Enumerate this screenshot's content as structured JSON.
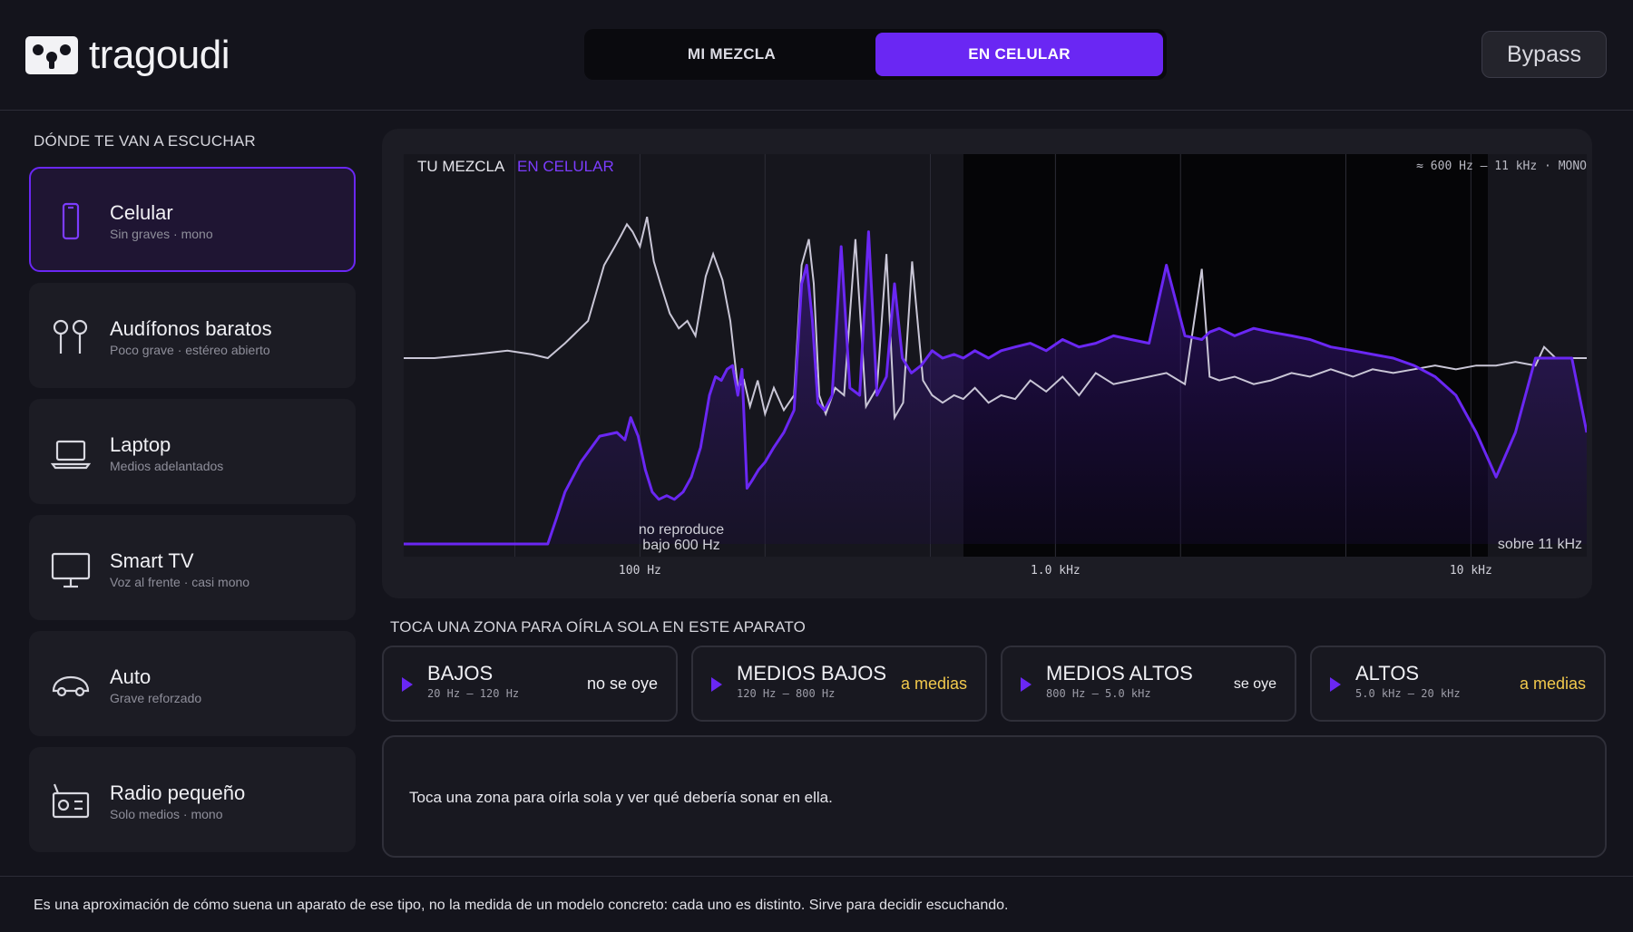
{
  "header": {
    "logo_text": "tragoudi",
    "tabs": [
      {
        "label": "MI MEZCLA",
        "active": false
      },
      {
        "label": "EN CELULAR",
        "active": true
      }
    ],
    "bypass_label": "Bypass"
  },
  "sidebar": {
    "title": "DÓNDE TE VAN A ESCUCHAR",
    "devices": [
      {
        "name": "Celular",
        "subtitle": "Sin graves · mono",
        "icon": "phone-icon",
        "active": true
      },
      {
        "name": "Audífonos baratos",
        "subtitle": "Poco grave · estéreo abierto",
        "icon": "earbuds-icon",
        "active": false
      },
      {
        "name": "Laptop",
        "subtitle": "Medios adelantados",
        "icon": "laptop-icon",
        "active": false
      },
      {
        "name": "Smart TV",
        "subtitle": "Voz al frente · casi mono",
        "icon": "tv-icon",
        "active": false
      },
      {
        "name": "Auto",
        "subtitle": "Grave reforzado",
        "icon": "car-icon",
        "active": false
      },
      {
        "name": "Radio pequeño",
        "subtitle": "Solo medios · mono",
        "icon": "radio-icon",
        "active": false
      }
    ]
  },
  "spectrum": {
    "legend_mix": "TU MEZCLA",
    "legend_device": "EN CELULAR",
    "range_info": "≈ 600 Hz – 11 kHz  ·  MONO",
    "note_low_1": "no reproduce",
    "note_low_2": "bajo 600 Hz",
    "note_high": "sobre 11 kHz",
    "ticks": [
      "100 Hz",
      "1.0 kHz",
      "10 kHz"
    ]
  },
  "chart_data": {
    "type": "line",
    "xscale": "log",
    "xlim": [
      27,
      19000
    ],
    "ylim": [
      0,
      1
    ],
    "series": [
      {
        "name": "TU MEZCLA",
        "color": "#c9c6d6",
        "x": [
          27,
          32,
          40,
          48,
          55,
          60,
          66,
          75,
          82,
          87,
          90,
          93,
          96,
          100,
          104,
          108,
          112,
          118,
          124,
          130,
          136,
          144,
          150,
          158,
          165,
          172,
          178,
          184,
          192,
          200,
          210,
          222,
          235,
          245,
          255,
          262,
          270,
          280,
          295,
          310,
          330,
          350,
          372,
          392,
          410,
          430,
          452,
          480,
          505,
          535,
          570,
          600,
          640,
          690,
          740,
          800,
          870,
          950,
          1040,
          1140,
          1250,
          1380,
          1520,
          1680,
          1850,
          2050,
          2250,
          2350,
          2480,
          2700,
          3000,
          3300,
          3700,
          4100,
          4600,
          5200,
          5800,
          6500,
          7300,
          8200,
          9200,
          10300,
          11500,
          12800,
          14300,
          15000,
          16000,
          17500,
          19000
        ],
        "y": [
          0.5,
          0.5,
          0.51,
          0.52,
          0.51,
          0.5,
          0.54,
          0.6,
          0.75,
          0.8,
          0.83,
          0.86,
          0.84,
          0.8,
          0.88,
          0.76,
          0.7,
          0.62,
          0.58,
          0.6,
          0.56,
          0.72,
          0.78,
          0.71,
          0.6,
          0.42,
          0.44,
          0.37,
          0.44,
          0.35,
          0.42,
          0.36,
          0.4,
          0.75,
          0.82,
          0.7,
          0.4,
          0.35,
          0.42,
          0.4,
          0.82,
          0.37,
          0.42,
          0.78,
          0.34,
          0.38,
          0.76,
          0.44,
          0.4,
          0.38,
          0.4,
          0.39,
          0.42,
          0.38,
          0.4,
          0.39,
          0.44,
          0.41,
          0.45,
          0.4,
          0.46,
          0.43,
          0.44,
          0.45,
          0.46,
          0.43,
          0.74,
          0.45,
          0.44,
          0.45,
          0.43,
          0.44,
          0.46,
          0.45,
          0.47,
          0.45,
          0.47,
          0.46,
          0.47,
          0.48,
          0.47,
          0.48,
          0.48,
          0.49,
          0.48,
          0.53,
          0.5,
          0.5,
          0.5
        ]
      },
      {
        "name": "EN CELULAR",
        "color": "#6a27f3",
        "x": [
          27,
          40,
          55,
          60,
          63,
          66,
          72,
          80,
          88,
          92,
          95,
          99,
          103,
          107,
          111,
          116,
          121,
          127,
          133,
          140,
          147,
          152,
          157,
          162,
          167,
          172,
          176,
          181,
          186,
          193,
          200,
          210,
          222,
          235,
          245,
          252,
          260,
          268,
          278,
          290,
          305,
          320,
          338,
          355,
          372,
          392,
          410,
          428,
          450,
          475,
          505,
          535,
          570,
          600,
          640,
          690,
          740,
          800,
          870,
          950,
          1040,
          1140,
          1250,
          1380,
          1520,
          1680,
          1850,
          2050,
          2250,
          2350,
          2480,
          2700,
          3000,
          3300,
          3700,
          4100,
          4600,
          5200,
          5800,
          6500,
          7300,
          8200,
          9200,
          10300,
          11500,
          12800,
          14300,
          16000,
          17500,
          19000
        ],
        "y": [
          0.0,
          0.0,
          0.0,
          0.0,
          0.07,
          0.14,
          0.22,
          0.29,
          0.3,
          0.28,
          0.34,
          0.29,
          0.2,
          0.14,
          0.12,
          0.13,
          0.12,
          0.14,
          0.18,
          0.26,
          0.4,
          0.45,
          0.44,
          0.47,
          0.48,
          0.4,
          0.47,
          0.15,
          0.17,
          0.2,
          0.22,
          0.26,
          0.3,
          0.36,
          0.7,
          0.75,
          0.6,
          0.38,
          0.36,
          0.4,
          0.8,
          0.42,
          0.4,
          0.84,
          0.4,
          0.45,
          0.7,
          0.5,
          0.46,
          0.48,
          0.52,
          0.5,
          0.51,
          0.5,
          0.52,
          0.5,
          0.52,
          0.53,
          0.54,
          0.52,
          0.55,
          0.53,
          0.54,
          0.56,
          0.55,
          0.54,
          0.75,
          0.56,
          0.55,
          0.57,
          0.58,
          0.56,
          0.58,
          0.57,
          0.56,
          0.55,
          0.53,
          0.52,
          0.51,
          0.5,
          0.48,
          0.45,
          0.4,
          0.3,
          0.18,
          0.3,
          0.5,
          0.5,
          0.5,
          0.3
        ]
      }
    ],
    "highlighted_band_hz": [
      600,
      11000
    ]
  },
  "zones": {
    "title": "TOCA UNA ZONA PARA OÍRLA SOLA EN ESTE APARATO",
    "items": [
      {
        "name": "BAJOS",
        "range": "20 Hz – 120 Hz",
        "status": "no se oye"
      },
      {
        "name": "MEDIOS BAJOS",
        "range": "120 Hz – 800 Hz",
        "status": "a medias"
      },
      {
        "name": "MEDIOS ALTOS",
        "range": "800 Hz – 5.0 kHz",
        "status": "se oye"
      },
      {
        "name": "ALTOS",
        "range": "5.0 kHz – 20 kHz",
        "status": "a medias"
      }
    ]
  },
  "info": {
    "text": "Toca una zona para oírla sola y ver qué debería sonar en ella."
  },
  "footer": {
    "text": "Es una aproximación de cómo suena un aparato de ese tipo, no la medida de un modelo concreto: cada uno es distinto. Sirve para decidir escuchando."
  },
  "colors": {
    "accent": "#6a27f3",
    "partial": "#f2c94c",
    "mix_line": "#c9c6d6"
  }
}
